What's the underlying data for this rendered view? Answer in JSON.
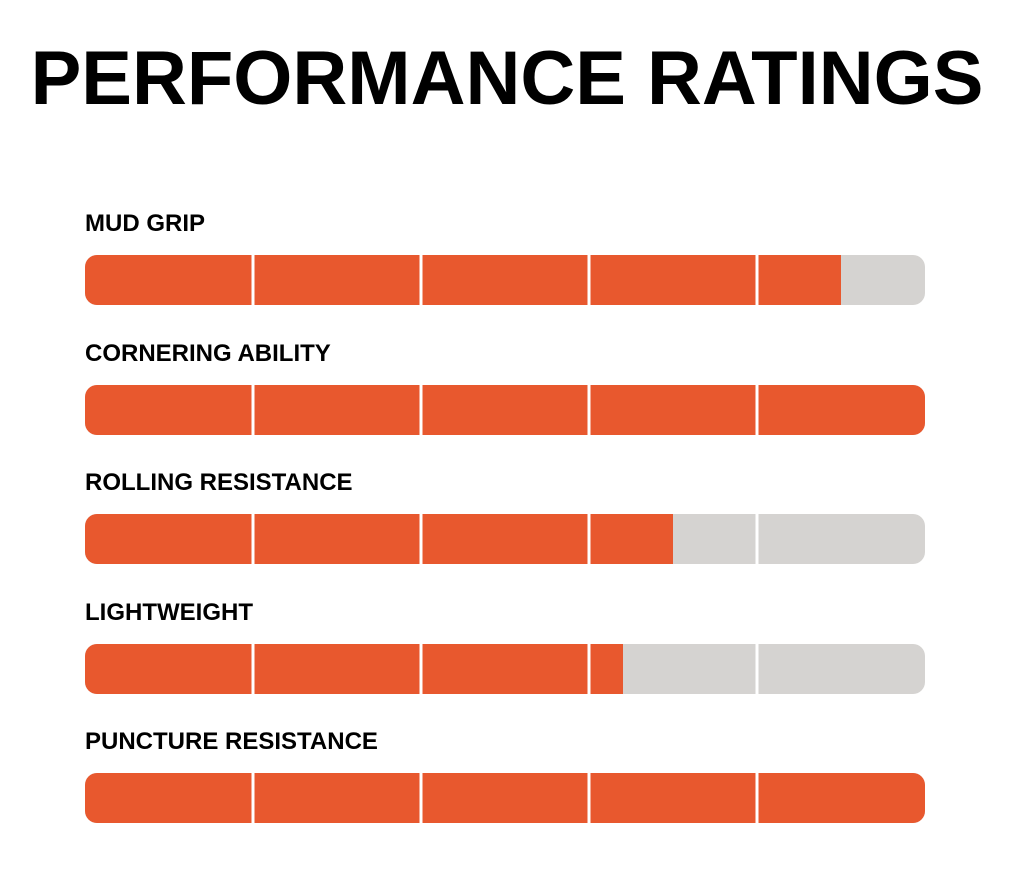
{
  "title": "PERFORMANCE RATINGS",
  "colors": {
    "fill": "#e8582e",
    "track": "#d5d3d1",
    "divider": "#ffffff",
    "text": "#000000"
  },
  "chart_data": {
    "type": "bar",
    "orientation": "horizontal",
    "scale_max": 5,
    "segments": 5,
    "categories": [
      "MUD GRIP",
      "CORNERING ABILITY",
      "ROLLING RESISTANCE",
      "LIGHTWEIGHT",
      "PUNCTURE RESISTANCE"
    ],
    "values": [
      4.5,
      5,
      3.5,
      3.2,
      5
    ]
  }
}
